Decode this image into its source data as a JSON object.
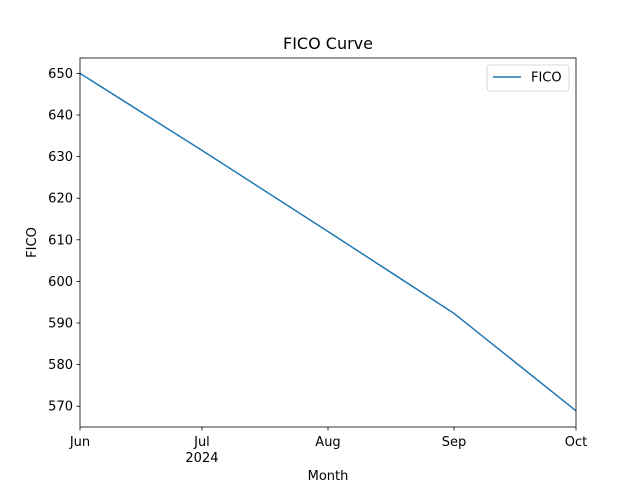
{
  "chart_data": {
    "type": "line",
    "title": "FICO Curve",
    "xlabel": "Month",
    "ylabel": "FICO",
    "x_ticks": [
      {
        "label": "Jun",
        "date": "2024-06-01"
      },
      {
        "label": "Jul",
        "date": "2024-07-01"
      },
      {
        "label": "Aug",
        "date": "2024-08-01"
      },
      {
        "label": "Sep",
        "date": "2024-09-01"
      },
      {
        "label": "Oct",
        "date": "2024-10-01"
      }
    ],
    "x_year_label": "2024",
    "y_ticks": [
      570,
      580,
      590,
      600,
      610,
      620,
      630,
      640,
      650
    ],
    "ylim": [
      565,
      653.7
    ],
    "xlim": [
      "2024-06-01",
      "2024-10-01"
    ],
    "grid": false,
    "legend_position": "top-right",
    "series": [
      {
        "name": "FICO",
        "color": "#1f77b4",
        "points": [
          {
            "x": "2024-06-01",
            "y": 650
          },
          {
            "x": "2024-07-01",
            "y": 631.5
          },
          {
            "x": "2024-08-01",
            "y": 612
          },
          {
            "x": "2024-09-01",
            "y": 592.3
          },
          {
            "x": "2024-10-01",
            "y": 568.9
          }
        ]
      }
    ]
  }
}
